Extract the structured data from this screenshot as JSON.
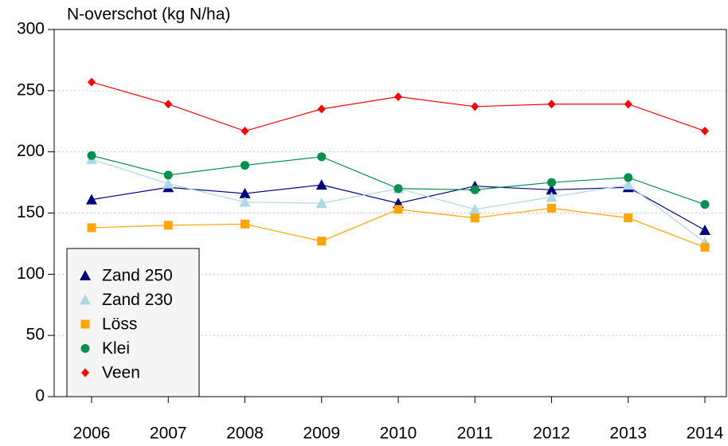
{
  "chart_data": {
    "type": "line",
    "title": "N-overschot (kg N/ha)",
    "categories": [
      "2006",
      "2007",
      "2008",
      "2009",
      "2010",
      "2011",
      "2012",
      "2013",
      "2014"
    ],
    "series": [
      {
        "name": "Zand 250",
        "color": "#000080",
        "marker": "triangle",
        "values": [
          161,
          171,
          166,
          173,
          158,
          172,
          169,
          171,
          136
        ]
      },
      {
        "name": "Zand 230",
        "color": "#add8e6",
        "marker": "triangle",
        "values": [
          194,
          174,
          159,
          158,
          170,
          153,
          163,
          173,
          126
        ]
      },
      {
        "name": "Löss",
        "color": "#ffa500",
        "marker": "square",
        "values": [
          138,
          140,
          141,
          127,
          153,
          146,
          154,
          146,
          122
        ]
      },
      {
        "name": "Klei",
        "color": "#009050",
        "marker": "circle",
        "values": [
          197,
          181,
          189,
          196,
          170,
          169,
          175,
          179,
          157
        ]
      },
      {
        "name": "Veen",
        "color": "#ff0000",
        "marker": "diamond",
        "values": [
          257,
          239,
          217,
          235,
          245,
          237,
          239,
          239,
          217
        ]
      }
    ],
    "ylim": [
      0,
      300
    ],
    "yticks": [
      0,
      50,
      100,
      150,
      200,
      250,
      300
    ],
    "grid": true,
    "legend": "lower left"
  }
}
